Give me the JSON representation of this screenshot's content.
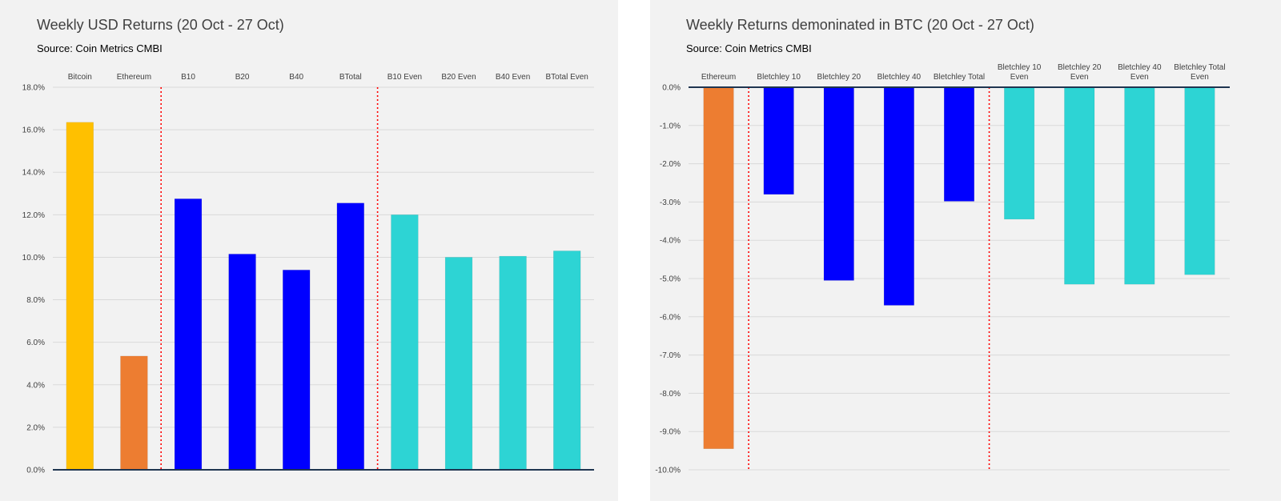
{
  "chart_data": [
    {
      "type": "bar",
      "title": "Weekly USD Returns (20 Oct - 27 Oct)",
      "subtitle": "Source: Coin Metrics CMBI",
      "categories": [
        "Bitcoin",
        "Ethereum",
        "B10",
        "B20",
        "B40",
        "BTotal",
        "B10 Even",
        "B20 Even",
        "B40 Even",
        "BTotal Even"
      ],
      "values": [
        16.35,
        5.35,
        12.75,
        10.15,
        9.4,
        12.55,
        12.0,
        10.0,
        10.05,
        10.3
      ],
      "colors": [
        "#FFC000",
        "#ED7D31",
        "#0000FF",
        "#0000FF",
        "#0000FF",
        "#0000FF",
        "#2DD4D4",
        "#2DD4D4",
        "#2DD4D4",
        "#2DD4D4"
      ],
      "ylim": [
        0,
        18
      ],
      "yticks": [
        "0.0%",
        "2.0%",
        "4.0%",
        "6.0%",
        "8.0%",
        "10.0%",
        "12.0%",
        "14.0%",
        "16.0%",
        "18.0%"
      ],
      "xlabel": "",
      "ylabel": "",
      "grid": true,
      "category_labels_position": "top",
      "dividers_after_index": [
        1,
        5
      ],
      "divider_color": "#FF0000"
    },
    {
      "type": "bar",
      "title": "Weekly Returns demoninated in BTC (20 Oct - 27 Oct)",
      "subtitle": "Source: Coin Metrics CMBI",
      "categories": [
        "Ethereum",
        "Bletchley 10",
        "Bletchley 20",
        "Bletchley 40",
        "Bletchley Total",
        "Bletchley 10 Even",
        "Bletchley 20 Even",
        "Bletchley 40 Even",
        "Bletchley Total Even"
      ],
      "values": [
        -9.45,
        -2.8,
        -5.05,
        -5.7,
        -2.98,
        -3.45,
        -5.15,
        -5.15,
        -4.9
      ],
      "colors": [
        "#ED7D31",
        "#0000FF",
        "#0000FF",
        "#0000FF",
        "#0000FF",
        "#2DD4D4",
        "#2DD4D4",
        "#2DD4D4",
        "#2DD4D4"
      ],
      "ylim": [
        -10,
        0
      ],
      "yticks": [
        "0.0%",
        "-1.0%",
        "-2.0%",
        "-3.0%",
        "-4.0%",
        "-5.0%",
        "-6.0%",
        "-7.0%",
        "-8.0%",
        "-9.0%",
        "-10.0%"
      ],
      "xlabel": "",
      "ylabel": "",
      "grid": true,
      "category_labels_position": "top",
      "dividers_after_index": [
        0,
        4
      ],
      "divider_color": "#FF0000"
    }
  ]
}
